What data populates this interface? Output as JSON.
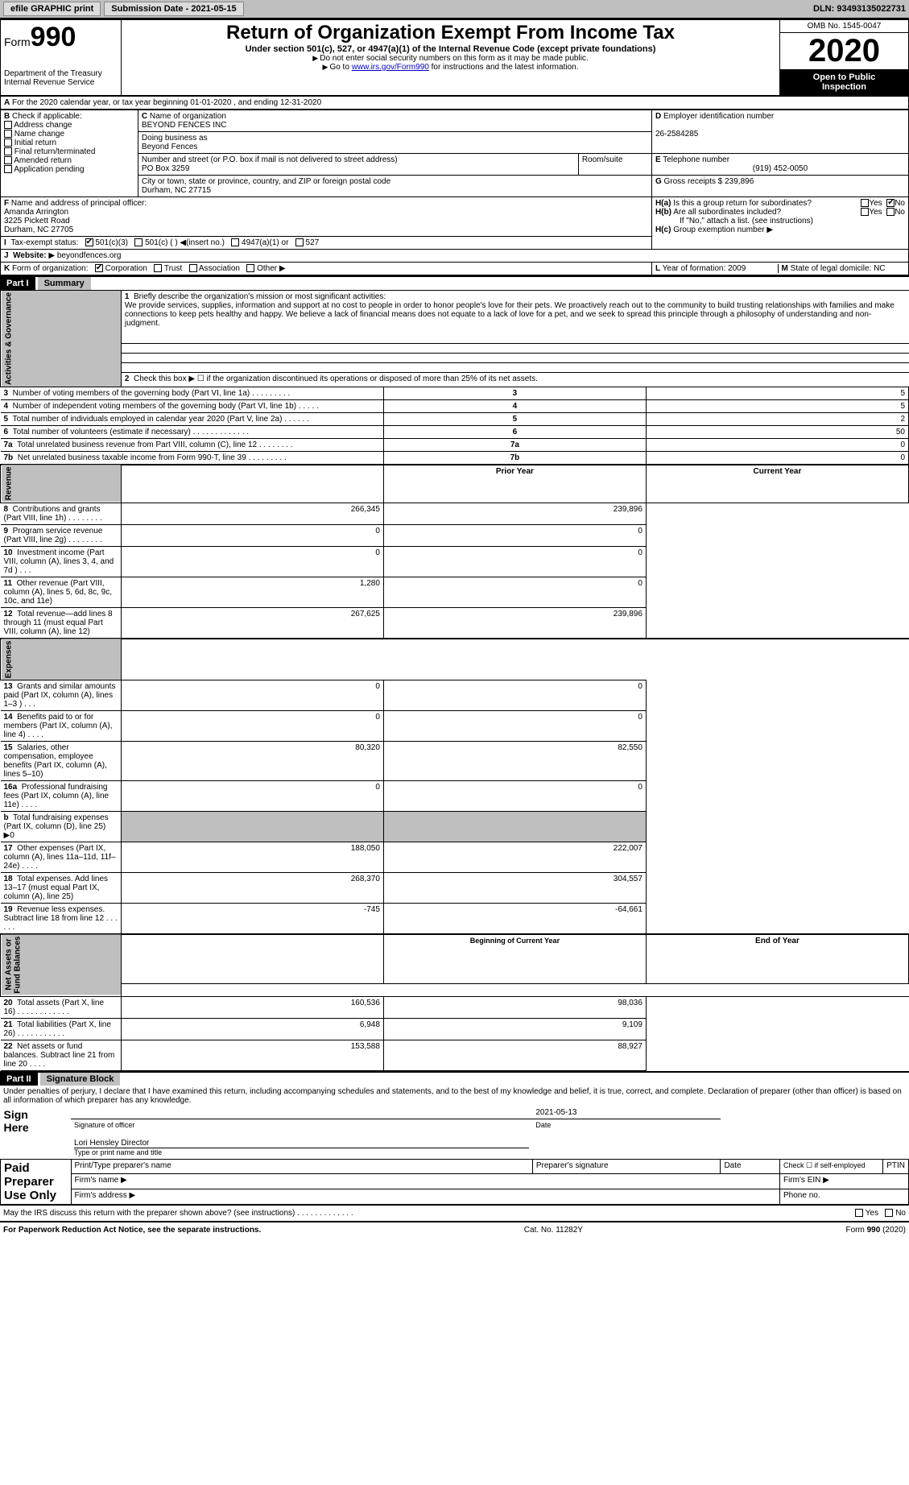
{
  "topbar": {
    "efile_btn": "efile GRAPHIC print",
    "submission_label": "Submission Date - 2021-05-15",
    "dln": "DLN: 93493135022731"
  },
  "header": {
    "form_label": "Form",
    "form_number": "990",
    "dept": "Department of the Treasury\nInternal Revenue Service",
    "title": "Return of Organization Exempt From Income Tax",
    "subtitle": "Under section 501(c), 527, or 4947(a)(1) of the Internal Revenue Code (except private foundations)",
    "note1": "Do not enter social security numbers on this form as it may be made public.",
    "note2_prefix": "Go to ",
    "note2_link": "www.irs.gov/Form990",
    "note2_suffix": " for instructions and the latest information.",
    "omb": "OMB No. 1545-0047",
    "year": "2020",
    "open_public": "Open to Public\nInspection"
  },
  "period": {
    "line": "For the 2020 calendar year, or tax year beginning 01-01-2020    , and ending 12-31-2020"
  },
  "boxB": {
    "label": "Check if applicable:",
    "items": [
      "Address change",
      "Name change",
      "Initial return",
      "Final return/terminated",
      "Amended return",
      "Application pending"
    ]
  },
  "boxC": {
    "name_label": "Name of organization",
    "name": "BEYOND FENCES INC",
    "dba_label": "Doing business as",
    "dba": "Beyond Fences",
    "addr_label": "Number and street (or P.O. box if mail is not delivered to street address)",
    "room_label": "Room/suite",
    "addr": "PO Box 3259",
    "city_label": "City or town, state or province, country, and ZIP or foreign postal code",
    "city": "Durham, NC  27715"
  },
  "boxD": {
    "label": "Employer identification number",
    "value": "26-2584285"
  },
  "boxE": {
    "label": "Telephone number",
    "value": "(919) 452-0050"
  },
  "boxG": {
    "label": "Gross receipts $",
    "value": "239,896"
  },
  "boxF": {
    "label": "Name and address of principal officer:",
    "name": "Amanda Arrington",
    "addr": "3225 Pickett Road",
    "city": "Durham, NC  27705"
  },
  "boxH": {
    "a_label": "Is this a group return for subordinates?",
    "b_label": "Are all subordinates included?",
    "yes": "Yes",
    "no": "No",
    "note": "If \"No,\" attach a list. (see instructions)",
    "c_label": "Group exemption number"
  },
  "boxI": {
    "label": "Tax-exempt status:",
    "opts": [
      "501(c)(3)",
      "501(c) (  )",
      "(insert no.)",
      "4947(a)(1) or",
      "527"
    ]
  },
  "boxJ": {
    "label": "Website:",
    "value": "beyondfences.org"
  },
  "boxK": {
    "label": "Form of organization:",
    "opts": [
      "Corporation",
      "Trust",
      "Association",
      "Other"
    ]
  },
  "boxL": {
    "label": "Year of formation:",
    "value": "2009"
  },
  "boxM": {
    "label": "State of legal domicile:",
    "value": "NC"
  },
  "partI": {
    "hdr": "Part I",
    "title": "Summary",
    "line1_label": "Briefly describe the organization's mission or most significant activities:",
    "mission": "We provide services, supplies, information and support at no cost to people in order to honor people's love for their pets. We proactively reach out to the community to build trusting relationships with families and make connections to keep pets healthy and happy. We believe a lack of financial means does not equate to a lack of love for a pet, and we seek to spread this principle through a philosophy of understanding and non-judgment.",
    "line2": "Check this box ▶ ☐  if the organization discontinued its operations or disposed of more than 25% of its net assets.",
    "rows_gov": [
      {
        "n": "3",
        "label": "Number of voting members of the governing body (Part VI, line 1a)  . . . . . . . . .",
        "val": "5"
      },
      {
        "n": "4",
        "label": "Number of independent voting members of the governing body (Part VI, line 1b)  . . . . .",
        "val": "5"
      },
      {
        "n": "5",
        "label": "Total number of individuals employed in calendar year 2020 (Part V, line 2a)  . . . . . .",
        "val": "2"
      },
      {
        "n": "6",
        "label": "Total number of volunteers (estimate if necessary)  . . . . . . . . . . . . .",
        "val": "50"
      },
      {
        "n": "7a",
        "label": "Total unrelated business revenue from Part VIII, column (C), line 12  . . . . . . . .",
        "val": "0"
      },
      {
        "n": "7b",
        "label": "Net unrelated business taxable income from Form 990-T, line 39  . . . . . . . . .",
        "val": "0"
      }
    ],
    "col_prior": "Prior Year",
    "col_current": "Current Year",
    "rows_rev": [
      {
        "n": "8",
        "label": "Contributions and grants (Part VIII, line 1h)  . . . . . . . .",
        "p": "266,345",
        "c": "239,896"
      },
      {
        "n": "9",
        "label": "Program service revenue (Part VIII, line 2g)  . . . . . . . .",
        "p": "0",
        "c": "0"
      },
      {
        "n": "10",
        "label": "Investment income (Part VIII, column (A), lines 3, 4, and 7d )  . . .",
        "p": "0",
        "c": "0"
      },
      {
        "n": "11",
        "label": "Other revenue (Part VIII, column (A), lines 5, 6d, 8c, 9c, 10c, and 11e)",
        "p": "1,280",
        "c": "0"
      },
      {
        "n": "12",
        "label": "Total revenue—add lines 8 through 11 (must equal Part VIII, column (A), line 12)",
        "p": "267,625",
        "c": "239,896"
      }
    ],
    "rows_exp": [
      {
        "n": "13",
        "label": "Grants and similar amounts paid (Part IX, column (A), lines 1–3 )  . . .",
        "p": "0",
        "c": "0"
      },
      {
        "n": "14",
        "label": "Benefits paid to or for members (Part IX, column (A), line 4)  . . . .",
        "p": "0",
        "c": "0"
      },
      {
        "n": "15",
        "label": "Salaries, other compensation, employee benefits (Part IX, column (A), lines 5–10)",
        "p": "80,320",
        "c": "82,550"
      },
      {
        "n": "16a",
        "label": "Professional fundraising fees (Part IX, column (A), line 11e)  . . . .",
        "p": "0",
        "c": "0"
      },
      {
        "n": "b",
        "label": "Total fundraising expenses (Part IX, column (D), line 25) ▶0",
        "p": "",
        "c": "",
        "shade": true
      },
      {
        "n": "17",
        "label": "Other expenses (Part IX, column (A), lines 11a–11d, 11f–24e)  . . . .",
        "p": "188,050",
        "c": "222,007"
      },
      {
        "n": "18",
        "label": "Total expenses. Add lines 13–17 (must equal Part IX, column (A), line 25)",
        "p": "268,370",
        "c": "304,557"
      },
      {
        "n": "19",
        "label": "Revenue less expenses. Subtract line 18 from line 12  . . . . . .",
        "p": "-745",
        "c": "-64,661"
      }
    ],
    "col_begin": "Beginning of Current Year",
    "col_end": "End of Year",
    "rows_net": [
      {
        "n": "20",
        "label": "Total assets (Part X, line 16)  . . . . . . . . . . . .",
        "p": "160,536",
        "c": "98,036"
      },
      {
        "n": "21",
        "label": "Total liabilities (Part X, line 26)  . . . . . . . . . . .",
        "p": "6,948",
        "c": "9,109"
      },
      {
        "n": "22",
        "label": "Net assets or fund balances. Subtract line 21 from line 20  . . . .",
        "p": "153,588",
        "c": "88,927"
      }
    ],
    "vlabels": {
      "gov": "Activities & Governance",
      "rev": "Revenue",
      "exp": "Expenses",
      "net": "Net Assets or\nFund Balances"
    }
  },
  "partII": {
    "hdr": "Part II",
    "title": "Signature Block",
    "declaration": "Under penalties of perjury, I declare that I have examined this return, including accompanying schedules and statements, and to the best of my knowledge and belief, it is true, correct, and complete. Declaration of preparer (other than officer) is based on all information of which preparer has any knowledge.",
    "sign_here": "Sign\nHere",
    "sig_officer": "Signature of officer",
    "date": "Date",
    "sig_date_val": "2021-05-13",
    "officer_name": "Lori Hensley  Director",
    "type_name": "Type or print name and title",
    "paid_preparer": "Paid\nPreparer\nUse Only",
    "prep_name": "Print/Type preparer's name",
    "prep_sig": "Preparer's signature",
    "check_if": "Check ☐ if self-employed",
    "ptin": "PTIN",
    "firm_name": "Firm's name  ▶",
    "firm_ein": "Firm's EIN ▶",
    "firm_addr": "Firm's address ▶",
    "phone": "Phone no.",
    "may_irs": "May the IRS discuss this return with the preparer shown above? (see instructions)  . . . . . . . . . . . . .",
    "yes": "Yes",
    "no": "No"
  },
  "footer": {
    "left": "For Paperwork Reduction Act Notice, see the separate instructions.",
    "mid": "Cat. No. 11282Y",
    "right": "Form 990 (2020)"
  }
}
